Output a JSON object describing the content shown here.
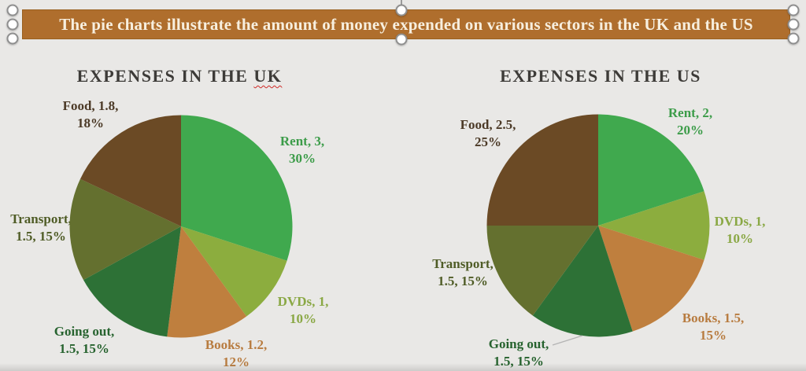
{
  "banner": {
    "text": "The pie charts illustrate the amount of money expended on various sectors in the UK and the US",
    "background": "#af6e2d",
    "text_color": "#f7efdf",
    "selected": true
  },
  "chart_data": [
    {
      "type": "pie",
      "title": "EXPENSES IN THE UK",
      "title_prefix": "EXPENSES IN THE",
      "title_word": "UK",
      "spellcheck_underline_on_title_word": true,
      "categories": [
        "Rent",
        "DVDs",
        "Books",
        "Going out",
        "Transport",
        "Food"
      ],
      "values": [
        3,
        1,
        1.2,
        1.5,
        1.5,
        1.8
      ],
      "percentages": [
        30,
        10,
        12,
        15,
        15,
        18
      ],
      "colors": [
        "#40a94e",
        "#8cad3e",
        "#bf7f3e",
        "#2d7136",
        "#64702f",
        "#6b4a25"
      ],
      "start_angle_deg": 0,
      "direction": "clockwise",
      "legend": "none",
      "labels": [
        {
          "name": "rent",
          "line1": "Rent, 3,",
          "line2": "30%",
          "color": "#3c9c49"
        },
        {
          "name": "dvds",
          "line1": "DVDs, 1,",
          "line2": "10%",
          "color": "#8aa845"
        },
        {
          "name": "books",
          "line1": "Books, 1.2,",
          "line2": "12%",
          "color": "#b87c40"
        },
        {
          "name": "going_out",
          "line1": "Going out,",
          "line2": "1.5, 15%",
          "color": "#27632f"
        },
        {
          "name": "transport",
          "line1": "Transport,",
          "line2": "1.5, 15%",
          "color": "#4f5c26"
        },
        {
          "name": "food",
          "line1": "Food, 1.8,",
          "line2": "18%",
          "color": "#4c3a27"
        }
      ]
    },
    {
      "type": "pie",
      "title": "EXPENSES IN THE US",
      "title_prefix": "EXPENSES IN THE",
      "title_word": "US",
      "spellcheck_underline_on_title_word": false,
      "categories": [
        "Rent",
        "DVDs",
        "Books",
        "Going out",
        "Transport",
        "Food"
      ],
      "values": [
        2,
        1,
        1.5,
        1.5,
        1.5,
        2.5
      ],
      "percentages": [
        20,
        10,
        15,
        15,
        15,
        25
      ],
      "colors": [
        "#40a94e",
        "#8cad3e",
        "#bf7f3e",
        "#2d7136",
        "#64702f",
        "#6b4a25"
      ],
      "start_angle_deg": 0,
      "direction": "clockwise",
      "legend": "none",
      "labels": [
        {
          "name": "rent",
          "line1": "Rent, 2,",
          "line2": "20%",
          "color": "#3c9c49"
        },
        {
          "name": "dvds",
          "line1": "DVDs, 1,",
          "line2": "10%",
          "color": "#8aa845"
        },
        {
          "name": "books",
          "line1": "Books, 1.5,",
          "line2": "15%",
          "color": "#b87c40"
        },
        {
          "name": "going_out",
          "line1": "Going out,",
          "line2": "1.5, 15%",
          "color": "#27632f"
        },
        {
          "name": "transport",
          "line1": "Transport,",
          "line2": "1.5, 15%",
          "color": "#4f5c26"
        },
        {
          "name": "food",
          "line1": "Food, 2.5,",
          "line2": "25%",
          "color": "#4c3a27"
        }
      ]
    }
  ]
}
